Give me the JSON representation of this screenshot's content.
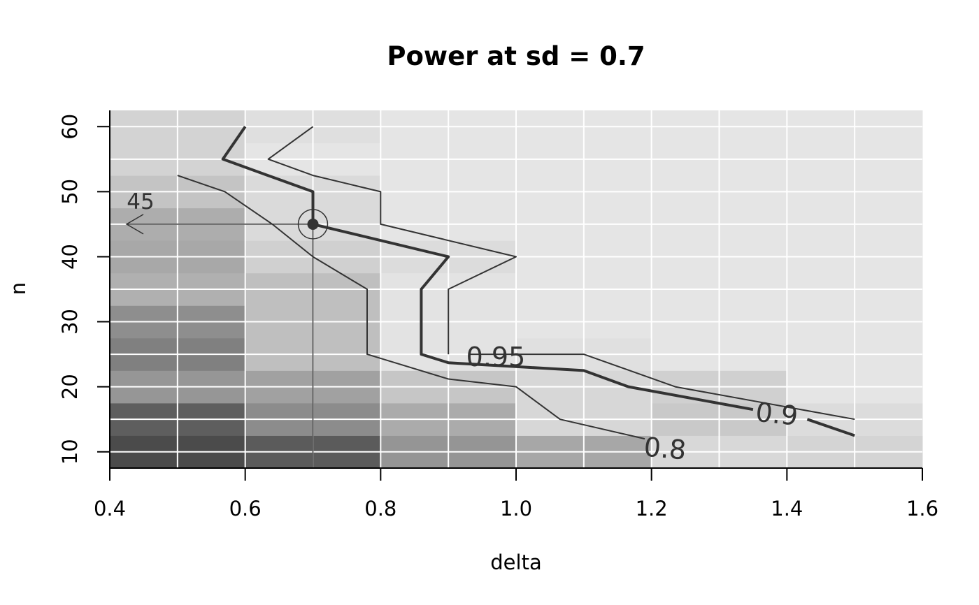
{
  "chart_data": {
    "type": "heatmap",
    "title": "Power at sd = 0.7",
    "xlabel": "delta",
    "ylabel": "n",
    "xlim": [
      0.4,
      1.6
    ],
    "ylim": [
      7.5,
      62.5
    ],
    "x_ticks": [
      "0.4",
      "0.6",
      "0.8",
      "1.0",
      "1.2",
      "1.4",
      "1.6"
    ],
    "x_tick_values": [
      0.4,
      0.6,
      0.8,
      1.0,
      1.2,
      1.4,
      1.6
    ],
    "y_ticks": [
      "10",
      "20",
      "30",
      "40",
      "50",
      "60"
    ],
    "y_tick_values": [
      10,
      20,
      30,
      40,
      50,
      60
    ],
    "x_grid": [
      0.5,
      0.6,
      0.7,
      0.8,
      0.9,
      1.0,
      1.1,
      1.2,
      1.3,
      1.4,
      1.5
    ],
    "y_grid": [
      10,
      15,
      20,
      25,
      30,
      35,
      40,
      45,
      50,
      55,
      60
    ],
    "grid": true,
    "colors": {
      "grid": "#ffffff",
      "line": "#333333",
      "marker": "#333333"
    },
    "cells": [
      {
        "x0": 0.4,
        "x1": 0.6,
        "y0": 7.5,
        "y1": 12.5,
        "color": "#4b4b4b"
      },
      {
        "x0": 0.4,
        "x1": 0.6,
        "y0": 12.5,
        "y1": 17.5,
        "color": "#5e5e5e"
      },
      {
        "x0": 0.4,
        "x1": 0.6,
        "y0": 17.5,
        "y1": 22.5,
        "color": "#969696"
      },
      {
        "x0": 0.4,
        "x1": 0.6,
        "y0": 22.5,
        "y1": 27.5,
        "color": "#808080"
      },
      {
        "x0": 0.4,
        "x1": 0.6,
        "y0": 27.5,
        "y1": 32.5,
        "color": "#8e8e8e"
      },
      {
        "x0": 0.4,
        "x1": 0.6,
        "y0": 32.5,
        "y1": 37.5,
        "color": "#b0b0b0"
      },
      {
        "x0": 0.4,
        "x1": 0.6,
        "y0": 37.5,
        "y1": 42.5,
        "color": "#a8a8a8"
      },
      {
        "x0": 0.4,
        "x1": 0.6,
        "y0": 42.5,
        "y1": 47.5,
        "color": "#adadad"
      },
      {
        "x0": 0.4,
        "x1": 0.6,
        "y0": 47.5,
        "y1": 52.5,
        "color": "#c4c4c4"
      },
      {
        "x0": 0.4,
        "x1": 0.6,
        "y0": 52.5,
        "y1": 62.5,
        "color": "#d3d3d3"
      },
      {
        "x0": 0.6,
        "x1": 0.8,
        "y0": 7.5,
        "y1": 12.5,
        "color": "#5b5b5b"
      },
      {
        "x0": 0.6,
        "x1": 0.8,
        "y0": 12.5,
        "y1": 17.5,
        "color": "#8c8c8c"
      },
      {
        "x0": 0.6,
        "x1": 0.8,
        "y0": 17.5,
        "y1": 22.5,
        "color": "#a1a1a1"
      },
      {
        "x0": 0.6,
        "x1": 0.8,
        "y0": 22.5,
        "y1": 37.5,
        "color": "#bfbfbf"
      },
      {
        "x0": 0.6,
        "x1": 0.8,
        "y0": 37.5,
        "y1": 42.5,
        "color": "#d0d0d0"
      },
      {
        "x0": 0.6,
        "x1": 0.8,
        "y0": 42.5,
        "y1": 52.5,
        "color": "#dadada"
      },
      {
        "x0": 0.6,
        "x1": 0.8,
        "y0": 52.5,
        "y1": 57.5,
        "color": "#e5e5e5"
      },
      {
        "x0": 0.6,
        "x1": 0.8,
        "y0": 57.5,
        "y1": 62.5,
        "color": "#dfdfdf"
      },
      {
        "x0": 0.8,
        "x1": 1.0,
        "y0": 7.5,
        "y1": 12.5,
        "color": "#959595"
      },
      {
        "x0": 0.8,
        "x1": 1.0,
        "y0": 12.5,
        "y1": 17.5,
        "color": "#ababab"
      },
      {
        "x0": 0.8,
        "x1": 1.0,
        "y0": 17.5,
        "y1": 22.5,
        "color": "#c6c6c6"
      },
      {
        "x0": 0.8,
        "x1": 1.0,
        "y0": 22.5,
        "y1": 37.5,
        "color": "#e3e3e3"
      },
      {
        "x0": 0.8,
        "x1": 1.0,
        "y0": 37.5,
        "y1": 42.5,
        "color": "#dcdcdc"
      },
      {
        "x0": 0.8,
        "x1": 1.0,
        "y0": 42.5,
        "y1": 62.5,
        "color": "#e5e5e5"
      },
      {
        "x0": 1.0,
        "x1": 1.2,
        "y0": 7.5,
        "y1": 12.5,
        "color": "#a7a7a7"
      },
      {
        "x0": 1.0,
        "x1": 1.2,
        "y0": 12.5,
        "y1": 22.5,
        "color": "#d7d7d7"
      },
      {
        "x0": 1.0,
        "x1": 1.2,
        "y0": 22.5,
        "y1": 27.5,
        "color": "#e0e0e0"
      },
      {
        "x0": 1.0,
        "x1": 1.2,
        "y0": 27.5,
        "y1": 62.5,
        "color": "#e5e5e5"
      },
      {
        "x0": 1.2,
        "x1": 1.4,
        "y0": 7.5,
        "y1": 12.5,
        "color": "#d8d8d8"
      },
      {
        "x0": 1.2,
        "x1": 1.4,
        "y0": 12.5,
        "y1": 17.5,
        "color": "#c9c9c9"
      },
      {
        "x0": 1.2,
        "x1": 1.4,
        "y0": 17.5,
        "y1": 22.5,
        "color": "#d0d0d0"
      },
      {
        "x0": 1.2,
        "x1": 1.4,
        "y0": 22.5,
        "y1": 62.5,
        "color": "#e5e5e5"
      },
      {
        "x0": 1.4,
        "x1": 1.6,
        "y0": 7.5,
        "y1": 12.5,
        "color": "#d4d4d4"
      },
      {
        "x0": 1.4,
        "x1": 1.6,
        "y0": 12.5,
        "y1": 17.5,
        "color": "#dcdcdc"
      },
      {
        "x0": 1.4,
        "x1": 1.6,
        "y0": 17.5,
        "y1": 62.5,
        "color": "#e5e5e5"
      }
    ],
    "contours": [
      {
        "level_label": "0.8",
        "width": 2,
        "points": [
          [
            1.19,
            12
          ],
          [
            1.065,
            15
          ],
          [
            1.0,
            20
          ],
          [
            0.9,
            21.2
          ],
          [
            0.78,
            25
          ],
          [
            0.78,
            35
          ],
          [
            0.7,
            40
          ],
          [
            0.64,
            45
          ],
          [
            0.57,
            50
          ],
          [
            0.5,
            52.5
          ]
        ],
        "label_at": [
          1.22,
          10.5
        ],
        "label_rotation": 5
      },
      {
        "level_label": "0.9",
        "width": 4,
        "points": [
          [
            1.35,
            16.5
          ],
          [
            1.166,
            20
          ],
          [
            1.1,
            22.5
          ],
          [
            0.9,
            23.7
          ],
          [
            0.86,
            25
          ],
          [
            0.86,
            35
          ],
          [
            0.9,
            40
          ],
          [
            0.7,
            45
          ],
          [
            0.7,
            50
          ],
          [
            0.567,
            55
          ],
          [
            0.6,
            60
          ]
        ],
        "points_right": [
          [
            1.43,
            15
          ],
          [
            1.5,
            12.5
          ]
        ],
        "label_at": [
          1.385,
          15.8
        ],
        "label_rotation": 6
      },
      {
        "level_label": "0.95",
        "width": 2,
        "points": [
          [
            0.9,
            25
          ],
          [
            0.9,
            35
          ],
          [
            1.0,
            40
          ],
          [
            0.8,
            45
          ],
          [
            0.8,
            50
          ],
          [
            0.7,
            52.5
          ],
          [
            0.634,
            55
          ],
          [
            0.7,
            60
          ]
        ],
        "points_right": [
          [
            0.93,
            25
          ],
          [
            1.1,
            25
          ],
          [
            1.235,
            20
          ],
          [
            1.5,
            15
          ]
        ],
        "label_at": [
          0.97,
          24.6
        ],
        "label_rotation": 0
      }
    ],
    "marker": {
      "x": 0.7,
      "y": 45,
      "label": "45"
    }
  }
}
